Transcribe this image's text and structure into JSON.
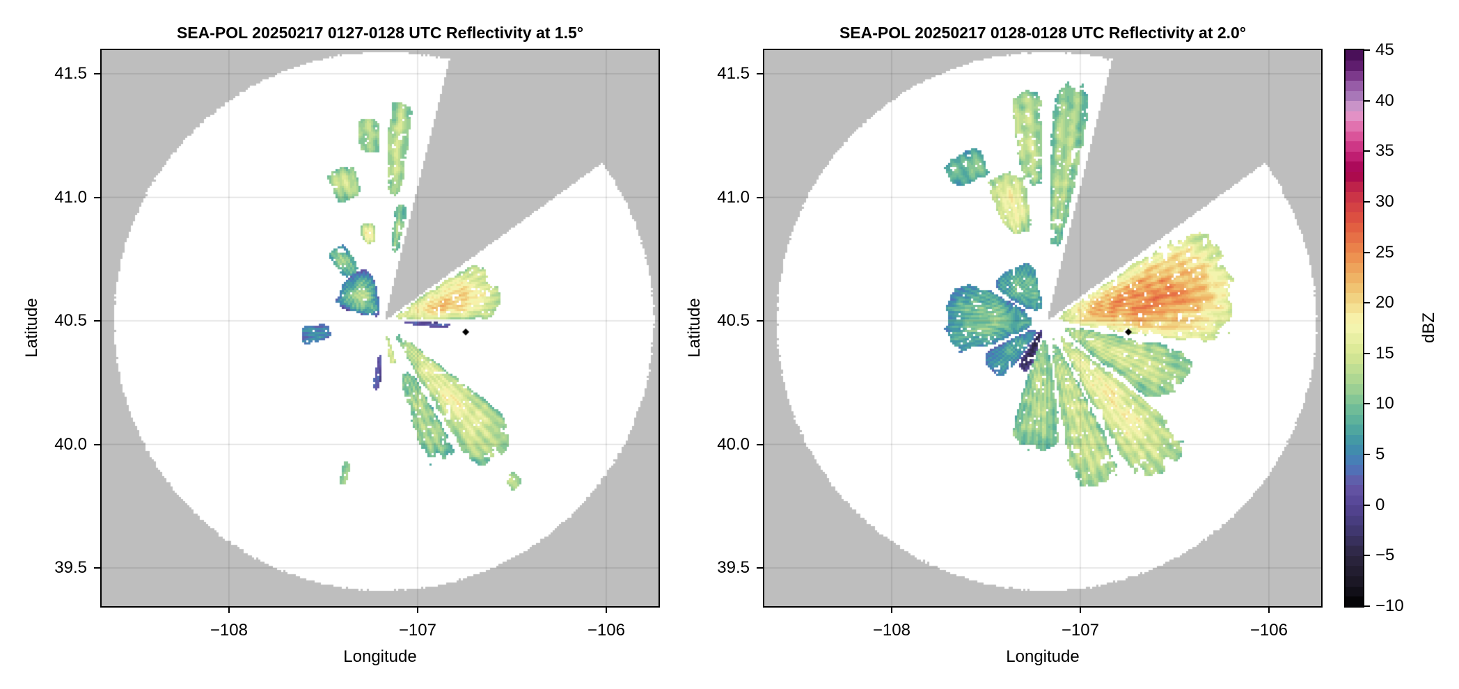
{
  "chart_data": {
    "type": "heatmap",
    "panels": [
      {
        "title": "SEA-POL 20250217 0127-0128 UTC Reflectivity at 1.5°",
        "xlabel": "Longitude",
        "ylabel": "Latitude",
        "xlim": [
          -108.675,
          -105.723
        ],
        "ylim": [
          39.345,
          41.596
        ],
        "xticks": [
          {
            "value": -108,
            "label": "−108"
          },
          {
            "value": -107,
            "label": "−107"
          },
          {
            "value": -106,
            "label": "−106"
          }
        ],
        "yticks": [
          {
            "value": 39.5,
            "label": "39.5"
          },
          {
            "value": 40.0,
            "label": "40.0"
          },
          {
            "value": 40.5,
            "label": "40.5"
          },
          {
            "value": 41.0,
            "label": "41.0"
          },
          {
            "value": 41.5,
            "label": "41.5"
          }
        ],
        "grid": true,
        "radar_lon": -107.178,
        "radar_lat": 40.498,
        "max_range_km": 121,
        "blocked_azimuth_deg": [
          14,
          54
        ],
        "marker": {
          "lon": -106.745,
          "lat": 40.455,
          "symbol": "diamond"
        },
        "echoes": [
          {
            "az": [
              55,
              90
            ],
            "range_km": [
              4,
              55
            ],
            "peak_dbz": 21,
            "edge_dbz": 9
          },
          {
            "az": [
              91,
              97
            ],
            "range_km": [
              8,
              30
            ],
            "peak_dbz": 3,
            "edge_dbz": 0
          },
          {
            "az": [
              127,
              150
            ],
            "range_km": [
              6,
              82
            ],
            "peak_dbz": 17,
            "edge_dbz": 8
          },
          {
            "az": [
              150,
              165
            ],
            "range_km": [
              22,
              70
            ],
            "peak_dbz": 13,
            "edge_dbz": 7
          },
          {
            "az": [
              163,
              173
            ],
            "range_km": [
              6,
              20
            ],
            "peak_dbz": 16,
            "edge_dbz": 12
          },
          {
            "az": [
              252,
              268
            ],
            "range_km": [
              24,
              38
            ],
            "peak_dbz": 6,
            "edge_dbz": 3
          },
          {
            "az": [
              285,
              350
            ],
            "range_km": [
              3,
              26
            ],
            "peak_dbz": 12,
            "edge_dbz": -1
          },
          {
            "az": [
              183,
              190
            ],
            "range_km": [
              15,
              32
            ],
            "peak_dbz": 3,
            "edge_dbz": 0
          },
          {
            "az": [
              345,
              355
            ],
            "range_km": [
              35,
              45
            ],
            "peak_dbz": 18,
            "edge_dbz": 9
          },
          {
            "az": [
              338,
              350
            ],
            "range_km": [
              56,
              72
            ],
            "peak_dbz": 14,
            "edge_dbz": 9
          },
          {
            "az": [
              352,
              359
            ],
            "range_km": [
              75,
              92
            ],
            "peak_dbz": 13,
            "edge_dbz": 10
          },
          {
            "az": [
              1,
              8
            ],
            "range_km": [
              55,
              100
            ],
            "peak_dbz": 14,
            "edge_dbz": 10
          },
          {
            "az": [
              5,
              12
            ],
            "range_km": [
              30,
              55
            ],
            "peak_dbz": 12,
            "edge_dbz": 8
          },
          {
            "az": [
              318,
              335
            ],
            "range_km": [
              25,
              40
            ],
            "peak_dbz": 11,
            "edge_dbz": 5
          },
          {
            "az": [
              193,
              196
            ],
            "range_km": [
              65,
              76
            ],
            "peak_dbz": 12,
            "edge_dbz": 10
          },
          {
            "az": [
              139,
              143
            ],
            "range_km": [
              88,
              96
            ],
            "peak_dbz": 14,
            "edge_dbz": 11
          }
        ]
      },
      {
        "title": "SEA-POL 20250217 0128-0128 UTC Reflectivity at 2.0°",
        "xlabel": "Longitude",
        "ylabel": "Latitude",
        "xlim": [
          -108.675,
          -105.723
        ],
        "ylim": [
          39.345,
          41.596
        ],
        "xticks": [
          {
            "value": -108,
            "label": "−108"
          },
          {
            "value": -107,
            "label": "−107"
          },
          {
            "value": -106,
            "label": "−106"
          }
        ],
        "yticks": [
          {
            "value": 39.5,
            "label": "39.5"
          },
          {
            "value": 40.0,
            "label": "40.0"
          },
          {
            "value": 40.5,
            "label": "40.5"
          },
          {
            "value": 41.0,
            "label": "41.0"
          },
          {
            "value": 41.5,
            "label": "41.5"
          }
        ],
        "grid": true,
        "radar_lon": -107.178,
        "radar_lat": 40.498,
        "max_range_km": 121,
        "blocked_azimuth_deg": [
          14,
          54
        ],
        "marker": {
          "lon": -106.745,
          "lat": 40.455,
          "symbol": "diamond"
        },
        "echoes": [
          {
            "az": [
              55,
              100
            ],
            "range_km": [
              3,
              88
            ],
            "peak_dbz": 25,
            "edge_dbz": 10
          },
          {
            "az": [
              100,
              128
            ],
            "range_km": [
              5,
              70
            ],
            "peak_dbz": 15,
            "edge_dbz": 8
          },
          {
            "az": [
              128,
              152
            ],
            "range_km": [
              5,
              88
            ],
            "peak_dbz": 18,
            "edge_dbz": 9
          },
          {
            "az": [
              152,
              172
            ],
            "range_km": [
              5,
              80
            ],
            "peak_dbz": 15,
            "edge_dbz": 9
          },
          {
            "az": [
              172,
              200
            ],
            "range_km": [
              5,
              60
            ],
            "peak_dbz": 13,
            "edge_dbz": 8
          },
          {
            "az": [
              198,
              215
            ],
            "range_km": [
              3,
              25
            ],
            "peak_dbz": -5,
            "edge_dbz": 2
          },
          {
            "az": [
              215,
              245
            ],
            "range_km": [
              5,
              35
            ],
            "peak_dbz": 8,
            "edge_dbz": 2
          },
          {
            "az": [
              245,
              300
            ],
            "range_km": [
              5,
              47
            ],
            "peak_dbz": 11,
            "edge_dbz": 3
          },
          {
            "az": [
              300,
              350
            ],
            "range_km": [
              5,
              30
            ],
            "peak_dbz": 11,
            "edge_dbz": 3
          },
          {
            "az": [
              335,
              352
            ],
            "range_km": [
              40,
              70
            ],
            "peak_dbz": 18,
            "edge_dbz": 9
          },
          {
            "az": [
              350,
              359
            ],
            "range_km": [
              60,
              105
            ],
            "peak_dbz": 14,
            "edge_dbz": 9
          },
          {
            "az": [
              1,
              12
            ],
            "range_km": [
              30,
              110
            ],
            "peak_dbz": 13,
            "edge_dbz": 8
          },
          {
            "az": [
              325,
              340
            ],
            "range_km": [
              70,
              85
            ],
            "peak_dbz": 10,
            "edge_dbz": 6
          }
        ]
      }
    ],
    "colorbar": {
      "label": "dBZ",
      "range": [
        -10,
        45
      ],
      "bin_width": 1,
      "ticks": [
        {
          "value": 45,
          "label": "45"
        },
        {
          "value": 40,
          "label": "40"
        },
        {
          "value": 35,
          "label": "35"
        },
        {
          "value": 30,
          "label": "30"
        },
        {
          "value": 25,
          "label": "25"
        },
        {
          "value": 20,
          "label": "20"
        },
        {
          "value": 15,
          "label": "15"
        },
        {
          "value": 10,
          "label": "10"
        },
        {
          "value": 5,
          "label": "5"
        },
        {
          "value": 0,
          "label": "0"
        },
        {
          "value": -5,
          "label": "−5"
        },
        {
          "value": -10,
          "label": "−10"
        }
      ],
      "colormap": [
        [
          -10,
          "#000000"
        ],
        [
          -8,
          "#171420"
        ],
        [
          -5,
          "#2c2640"
        ],
        [
          -2,
          "#443a78"
        ],
        [
          0,
          "#554594"
        ],
        [
          2,
          "#6656a6"
        ],
        [
          4,
          "#4a78bb"
        ],
        [
          6,
          "#3e92a8"
        ],
        [
          8,
          "#55ad9c"
        ],
        [
          10,
          "#78c196"
        ],
        [
          12,
          "#a6d492"
        ],
        [
          15,
          "#d8e793"
        ],
        [
          18,
          "#f8f7b3"
        ],
        [
          20,
          "#f2d98a"
        ],
        [
          22,
          "#efbb6a"
        ],
        [
          25,
          "#ec8a4c"
        ],
        [
          28,
          "#e0563f"
        ],
        [
          31,
          "#c72d48"
        ],
        [
          33,
          "#a3004f"
        ],
        [
          35,
          "#c8287c"
        ],
        [
          37,
          "#e063a4"
        ],
        [
          39,
          "#e2a0d0"
        ],
        [
          40,
          "#b085c0"
        ],
        [
          42,
          "#8e4e9e"
        ],
        [
          43,
          "#6a2378"
        ],
        [
          45,
          "#3f0a4f"
        ]
      ]
    },
    "colors": {
      "no_data": "#bebebe",
      "in_range": "#ffffff",
      "marker": "#000000"
    }
  }
}
